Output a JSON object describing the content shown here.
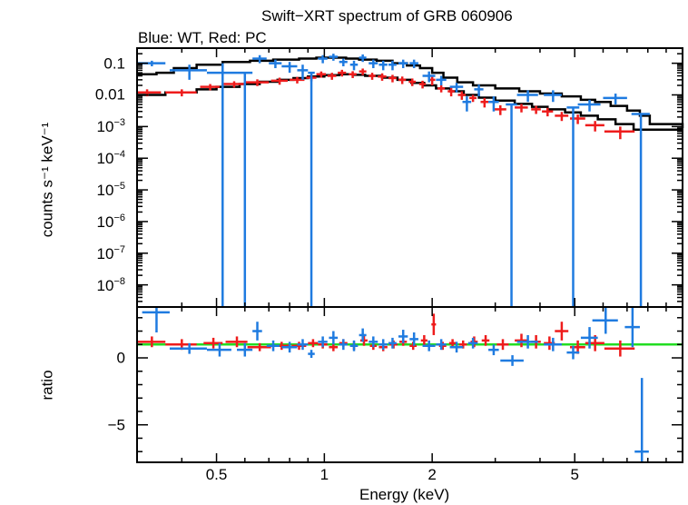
{
  "chart_data": {
    "type": "scatter",
    "title": "Swift−XRT spectrum of GRB 060906",
    "subtitle": "Blue: WT, Red: PC",
    "xlabel": "Energy (keV)",
    "xscale": "log",
    "xlim": [
      0.3,
      10.0
    ],
    "xticks": [
      0.5,
      1,
      2,
      5
    ],
    "xtick_labels": [
      "0.5",
      "1",
      "2",
      "5"
    ],
    "colors": {
      "wt": "#1f7be0",
      "pc": "#ee1c1c",
      "model": "#000000",
      "unity": "#22dd22"
    },
    "top_panel": {
      "ylabel": "counts s⁻¹ keV⁻¹",
      "yscale": "log",
      "ylim": [
        2e-09,
        0.3
      ],
      "yticks": [
        0.1,
        0.01,
        0.001,
        0.0001,
        1e-05,
        1e-06,
        1e-07,
        1e-08
      ],
      "ytick_labels": [
        {
          "base": "0.1",
          "exp": ""
        },
        {
          "base": "0.01",
          "exp": ""
        },
        {
          "base": "10",
          "exp": "−3"
        },
        {
          "base": "10",
          "exp": "−4"
        },
        {
          "base": "10",
          "exp": "−5"
        },
        {
          "base": "10",
          "exp": "−6"
        },
        {
          "base": "10",
          "exp": "−7"
        },
        {
          "base": "10",
          "exp": "−8"
        }
      ],
      "wt": [
        [
          0.33,
          0.03,
          0.1,
          0.02
        ],
        [
          0.42,
          0.05,
          0.06,
          0.03
        ],
        [
          0.52,
          0.05,
          0.05,
          0.05
        ],
        [
          0.6,
          0.03,
          0.05,
          null
        ],
        [
          0.66,
          0.03,
          0.14,
          0.04
        ],
        [
          0.73,
          0.03,
          0.1,
          0.03
        ],
        [
          0.8,
          0.04,
          0.08,
          0.03
        ],
        [
          0.87,
          0.03,
          0.06,
          0.03
        ],
        [
          0.92,
          0.02,
          0.05,
          null
        ],
        [
          0.99,
          0.03,
          0.14,
          0.04
        ],
        [
          1.06,
          0.03,
          0.16,
          0.04
        ],
        [
          1.13,
          0.03,
          0.11,
          0.03
        ],
        [
          1.21,
          0.03,
          0.09,
          0.03
        ],
        [
          1.28,
          0.03,
          0.15,
          0.04
        ],
        [
          1.37,
          0.04,
          0.1,
          0.03
        ],
        [
          1.46,
          0.04,
          0.09,
          0.03
        ],
        [
          1.55,
          0.04,
          0.09,
          0.03
        ],
        [
          1.66,
          0.05,
          0.1,
          0.03
        ],
        [
          1.78,
          0.05,
          0.1,
          0.03
        ],
        [
          1.96,
          0.08,
          0.04,
          0.015
        ],
        [
          2.12,
          0.07,
          0.03,
          0.01
        ],
        [
          2.34,
          0.1,
          0.018,
          0.006
        ],
        [
          2.5,
          0.07,
          0.006,
          0.003
        ],
        [
          2.7,
          0.08,
          0.015,
          0.006
        ],
        [
          2.97,
          0.1,
          0.006,
          0.003
        ],
        [
          3.33,
          0.12,
          0.005,
          null
        ],
        [
          3.7,
          0.25,
          0.01,
          0.004
        ],
        [
          4.35,
          0.25,
          0.01,
          0.004
        ],
        [
          4.95,
          0.2,
          0.004,
          null
        ],
        [
          5.5,
          0.4,
          0.005,
          0.002
        ],
        [
          6.5,
          0.5,
          0.008,
          0.003
        ],
        [
          7.65,
          0.45,
          0.0025,
          null
        ]
      ],
      "pc": [
        [
          0.32,
          0.03,
          0.012,
          0.003
        ],
        [
          0.4,
          0.04,
          0.012,
          0.003
        ],
        [
          0.48,
          0.03,
          0.018,
          0.004
        ],
        [
          0.56,
          0.04,
          0.022,
          0.005
        ],
        [
          0.65,
          0.05,
          0.025,
          0.006
        ],
        [
          0.75,
          0.04,
          0.028,
          0.007
        ],
        [
          0.84,
          0.04,
          0.03,
          0.007
        ],
        [
          0.92,
          0.03,
          0.035,
          0.008
        ],
        [
          0.98,
          0.03,
          0.045,
          0.01
        ],
        [
          1.05,
          0.03,
          0.04,
          0.01
        ],
        [
          1.12,
          0.03,
          0.05,
          0.012
        ],
        [
          1.2,
          0.03,
          0.045,
          0.011
        ],
        [
          1.28,
          0.03,
          0.055,
          0.013
        ],
        [
          1.36,
          0.03,
          0.04,
          0.01
        ],
        [
          1.45,
          0.04,
          0.038,
          0.01
        ],
        [
          1.55,
          0.04,
          0.034,
          0.009
        ],
        [
          1.65,
          0.04,
          0.03,
          0.008
        ],
        [
          1.76,
          0.04,
          0.026,
          0.007
        ],
        [
          1.88,
          0.04,
          0.022,
          0.006
        ],
        [
          2.0,
          0.04,
          0.03,
          0.01
        ],
        [
          2.12,
          0.05,
          0.016,
          0.004
        ],
        [
          2.26,
          0.05,
          0.013,
          0.004
        ],
        [
          2.42,
          0.06,
          0.01,
          0.003
        ],
        [
          2.6,
          0.06,
          0.008,
          0.002
        ],
        [
          2.8,
          0.07,
          0.006,
          0.002
        ],
        [
          3.1,
          0.12,
          0.0035,
          0.0012
        ],
        [
          3.55,
          0.15,
          0.004,
          0.0012
        ],
        [
          3.9,
          0.12,
          0.0035,
          0.001
        ],
        [
          4.2,
          0.15,
          0.003,
          0.0009
        ],
        [
          4.6,
          0.2,
          0.0022,
          0.0007
        ],
        [
          5.1,
          0.25,
          0.0018,
          0.0006
        ],
        [
          5.7,
          0.35,
          0.0011,
          0.0004
        ],
        [
          6.7,
          0.65,
          0.0007,
          0.0003
        ]
      ],
      "model_wt": [
        [
          0.3,
          0.045
        ],
        [
          0.34,
          0.05
        ],
        [
          0.38,
          0.07
        ],
        [
          0.44,
          0.09
        ],
        [
          0.52,
          0.11
        ],
        [
          0.62,
          0.12
        ],
        [
          0.72,
          0.13
        ],
        [
          0.85,
          0.14
        ],
        [
          0.95,
          0.15
        ],
        [
          1.05,
          0.15
        ],
        [
          1.15,
          0.14
        ],
        [
          1.25,
          0.13
        ],
        [
          1.4,
          0.12
        ],
        [
          1.55,
          0.1
        ],
        [
          1.7,
          0.085
        ],
        [
          1.85,
          0.07
        ],
        [
          2.0,
          0.05
        ],
        [
          2.15,
          0.035
        ],
        [
          2.35,
          0.025
        ],
        [
          2.6,
          0.02
        ],
        [
          3.0,
          0.016
        ],
        [
          3.5,
          0.013
        ],
        [
          4.0,
          0.011
        ],
        [
          4.6,
          0.009
        ],
        [
          5.2,
          0.007
        ],
        [
          5.7,
          0.006
        ],
        [
          6.3,
          0.0045
        ],
        [
          7.0,
          0.0032
        ],
        [
          7.6,
          0.0022
        ],
        [
          8.1,
          0.0012
        ],
        [
          10.0,
          0.0009
        ]
      ],
      "model_pc": [
        [
          0.3,
          0.01
        ],
        [
          0.36,
          0.012
        ],
        [
          0.44,
          0.015
        ],
        [
          0.5,
          0.018
        ],
        [
          0.58,
          0.022
        ],
        [
          0.66,
          0.026
        ],
        [
          0.74,
          0.03
        ],
        [
          0.82,
          0.034
        ],
        [
          0.9,
          0.038
        ],
        [
          1.0,
          0.042
        ],
        [
          1.1,
          0.045
        ],
        [
          1.2,
          0.043
        ],
        [
          1.3,
          0.04
        ],
        [
          1.45,
          0.035
        ],
        [
          1.6,
          0.03
        ],
        [
          1.75,
          0.024
        ],
        [
          1.9,
          0.02
        ],
        [
          2.05,
          0.016
        ],
        [
          2.25,
          0.013
        ],
        [
          2.45,
          0.01
        ],
        [
          2.7,
          0.0082
        ],
        [
          3.0,
          0.0066
        ],
        [
          3.4,
          0.0052
        ],
        [
          3.8,
          0.0042
        ],
        [
          4.2,
          0.0035
        ],
        [
          4.7,
          0.0028
        ],
        [
          5.2,
          0.0022
        ],
        [
          5.8,
          0.0017
        ],
        [
          6.5,
          0.0012
        ],
        [
          7.3,
          0.0008
        ]
      ]
    },
    "bottom_panel": {
      "ylabel": "ratio",
      "yscale": "linear",
      "ylim": [
        -7.8,
        3.8
      ],
      "yticks": [
        0,
        -5
      ],
      "ytick_labels": [
        "0",
        "−5"
      ],
      "unity_line": 1,
      "wt": [
        [
          0.34,
          0.03,
          3.4,
          1.5
        ],
        [
          0.42,
          0.05,
          0.7,
          0.4
        ],
        [
          0.51,
          0.04,
          0.6,
          0.5
        ],
        [
          0.6,
          0.03,
          0.6,
          0.5
        ],
        [
          0.65,
          0.02,
          2.0,
          0.7
        ],
        [
          0.72,
          0.03,
          0.9,
          0.4
        ],
        [
          0.8,
          0.04,
          0.8,
          0.4
        ],
        [
          0.87,
          0.03,
          1.0,
          0.4
        ],
        [
          0.92,
          0.02,
          0.3,
          0.3
        ],
        [
          0.99,
          0.03,
          1.2,
          0.4
        ],
        [
          1.06,
          0.03,
          1.5,
          0.5
        ],
        [
          1.13,
          0.03,
          1.0,
          0.4
        ],
        [
          1.21,
          0.03,
          0.9,
          0.4
        ],
        [
          1.28,
          0.03,
          1.7,
          0.5
        ],
        [
          1.37,
          0.04,
          1.2,
          0.4
        ],
        [
          1.46,
          0.04,
          1.0,
          0.4
        ],
        [
          1.55,
          0.04,
          1.1,
          0.4
        ],
        [
          1.66,
          0.05,
          1.6,
          0.5
        ],
        [
          1.78,
          0.05,
          1.4,
          0.5
        ],
        [
          1.96,
          0.08,
          0.9,
          0.4
        ],
        [
          2.12,
          0.07,
          1.0,
          0.4
        ],
        [
          2.34,
          0.1,
          0.8,
          0.4
        ],
        [
          2.6,
          0.08,
          1.1,
          0.4
        ],
        [
          2.97,
          0.1,
          0.6,
          0.4
        ],
        [
          3.35,
          0.25,
          -0.2,
          0.4
        ],
        [
          3.7,
          0.25,
          1.2,
          0.5
        ],
        [
          4.35,
          0.25,
          1.0,
          0.5
        ],
        [
          4.95,
          0.2,
          0.4,
          0.5
        ],
        [
          5.5,
          0.3,
          1.5,
          0.8
        ],
        [
          6.1,
          0.5,
          2.8,
          1.0
        ],
        [
          7.25,
          0.35,
          2.3,
          1.5
        ],
        [
          7.7,
          0.35,
          -7.0,
          5.5
        ]
      ],
      "pc": [
        [
          0.33,
          0.03,
          1.2,
          0.4
        ],
        [
          0.4,
          0.04,
          1.0,
          0.4
        ],
        [
          0.49,
          0.03,
          1.1,
          0.4
        ],
        [
          0.57,
          0.04,
          1.2,
          0.4
        ],
        [
          0.66,
          0.05,
          0.8,
          0.3
        ],
        [
          0.76,
          0.04,
          0.9,
          0.3
        ],
        [
          0.85,
          0.04,
          0.9,
          0.3
        ],
        [
          0.93,
          0.03,
          1.1,
          0.3
        ],
        [
          0.99,
          0.03,
          1.0,
          0.3
        ],
        [
          1.06,
          0.03,
          0.8,
          0.3
        ],
        [
          1.13,
          0.03,
          1.1,
          0.3
        ],
        [
          1.21,
          0.03,
          0.9,
          0.3
        ],
        [
          1.29,
          0.03,
          1.3,
          0.4
        ],
        [
          1.37,
          0.03,
          0.9,
          0.3
        ],
        [
          1.46,
          0.04,
          0.8,
          0.3
        ],
        [
          1.56,
          0.04,
          1.0,
          0.3
        ],
        [
          1.66,
          0.04,
          1.2,
          0.3
        ],
        [
          1.77,
          0.04,
          0.9,
          0.3
        ],
        [
          1.9,
          0.04,
          1.3,
          0.4
        ],
        [
          2.02,
          0.03,
          2.5,
          0.8
        ],
        [
          2.14,
          0.05,
          0.9,
          0.3
        ],
        [
          2.28,
          0.05,
          1.1,
          0.3
        ],
        [
          2.44,
          0.06,
          1.0,
          0.3
        ],
        [
          2.62,
          0.06,
          1.2,
          0.4
        ],
        [
          2.82,
          0.07,
          1.3,
          0.4
        ],
        [
          3.15,
          0.12,
          1.0,
          0.4
        ],
        [
          3.55,
          0.15,
          1.3,
          0.5
        ],
        [
          3.9,
          0.12,
          1.2,
          0.5
        ],
        [
          4.25,
          0.15,
          1.1,
          0.5
        ],
        [
          4.6,
          0.2,
          2.0,
          0.7
        ],
        [
          5.1,
          0.25,
          0.8,
          0.5
        ],
        [
          5.7,
          0.35,
          1.1,
          0.6
        ],
        [
          6.7,
          0.65,
          0.7,
          0.6
        ]
      ]
    }
  }
}
